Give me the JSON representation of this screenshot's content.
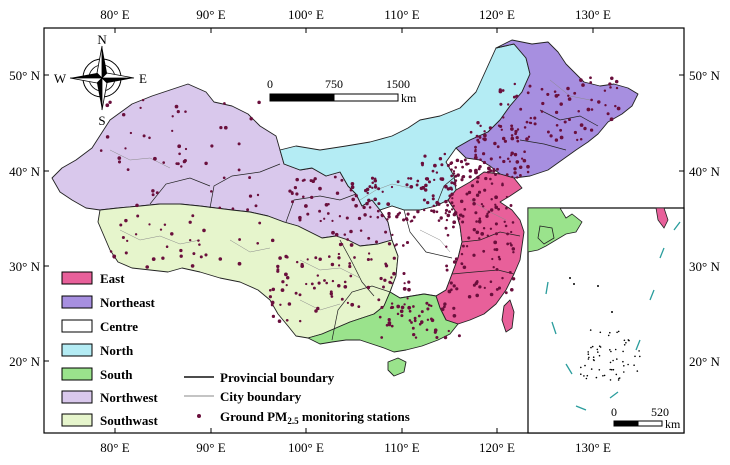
{
  "axes": {
    "longitude_ticks": [
      "80° E",
      "90° E",
      "100° E",
      "110° E",
      "120° E",
      "130° E"
    ],
    "latitude_ticks": [
      "50° N",
      "40° N",
      "30° N",
      "20° N"
    ]
  },
  "compass": {
    "north": "N",
    "south": "S",
    "east": "E",
    "west": "W"
  },
  "main_scale_bar": {
    "labels": [
      "0",
      "750",
      "1500"
    ],
    "unit": "km"
  },
  "inset_scale_bar": {
    "labels": [
      "0",
      "520"
    ],
    "unit": "km"
  },
  "regions": [
    {
      "name": "East",
      "color": "#e8609a"
    },
    {
      "name": "Northeast",
      "color": "#a78fe0"
    },
    {
      "name": "Centre",
      "color": "#ffffff"
    },
    {
      "name": "North",
      "color": "#b4ecf4"
    },
    {
      "name": "South",
      "color": "#9ae38c"
    },
    {
      "name": "Northwest",
      "color": "#d9c8ec"
    },
    {
      "name": "Southwast",
      "color": "#e6f5cc"
    }
  ],
  "boundary_legend": {
    "provincial": "Provincial boundary",
    "city": "City boundary",
    "stations_pre": "Ground PM",
    "stations_sub": "2.5",
    "stations_post": " monitoring stations"
  },
  "colors": {
    "station_dot": "#6a0f3c",
    "provincial_line": "#111111",
    "city_line": "#8a8a8a",
    "sea_islands": "#2a9d9d"
  }
}
